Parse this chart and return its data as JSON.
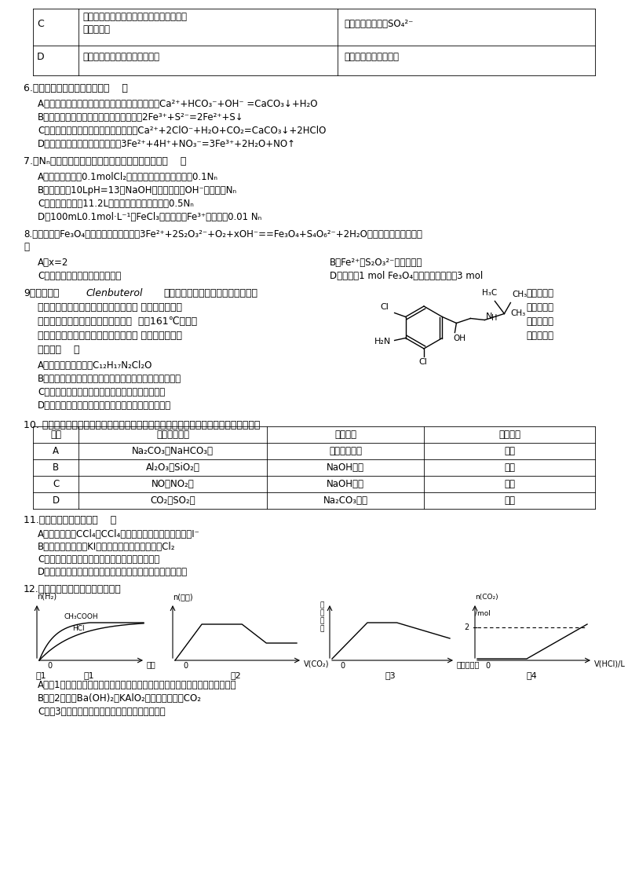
{
  "bg_color": "#ffffff",
  "text_color": "#000000",
  "table_top_rows": [
    {
      "label": "C",
      "col1a": "某溶液中加入硝酸酸化的氯化钡溶液，有白",
      "col1b": "色沉淀生成",
      "col2": "说明该溶液中含有SO₄²⁻"
    },
    {
      "label": "D",
      "col1a": "向盐酸中加入浓硫酸时产生白雾",
      "col1b": "",
      "col2": "说明浓硫酸具有脱水性"
    }
  ],
  "q6_text": "6.下列离子方程式书写正确是（    ）",
  "q6_opts": [
    "A．向碳酸氢钙溶液中加入过量的氢氧化钠溶液：Ca²⁺+HCO₃⁻+OH⁻ =CaCO₃↓+H₂O",
    "B．将少量氯化铁溶液滴入硫化钠溶液中：2Fe³⁺+S²⁻=2Fe²⁺+S↓",
    "C．次氯酸钙溶液中通入过量二氧化碳：Ca²⁺+2ClO⁻+H₂O+CO₂=CaCO₃↓+2HClO",
    "D．氯化亚铁溶液中加入稀硝酸：3Fe²⁺+4H⁺+NO₃⁻=3Fe³⁺+2H₂O+NO↑"
  ],
  "q7_text": "7.设Nₙ为阿伏伽德罗常数的值，下列说法正确的是（    ）",
  "q7_opts": [
    "A．标准状况下，0.1molCl₂溶于水，转移的电子数目为0.1Nₙ",
    "B．常温下，10LpH=13的NaOH溶液中含有的OH⁻离子数为Nₙ",
    "C．标准状况下，11.2L己烷中含有分子的数目为0.5Nₙ",
    "D．100mL0.1mol·L⁻¹的FeCl₃溶液中含有Fe³⁺的个数为0.01 Nₙ"
  ],
  "q8_text": "8.水热法制备Fe₃O₄纳米颗粒的总反应为：3Fe²⁺+2S₂O₃²⁻+O₂+xOH⁻==Fe₃O₄+S₄O₆²⁻+2H₂O，下列说法正确的是（",
  "q8_opts_left": [
    "A．x=2",
    "C．硫元素被氧化，铁元素被还原"
  ],
  "q8_opts_right": [
    "B．Fe²⁺、S₂O₃²⁻都是还原剂",
    "D．每生成1 mol Fe₃O₄，则转移电子数为3 mol"
  ],
  "q9_line1_left": "9、瘦肉精（Clenbuterol）是一种非常廉价的药品，但它有很",
  "q9_line1_right": "危险的副作",
  "q9_line2_left": "   用，轻则导致心律不整，严重一点就会 导致心脏病。瘦",
  "q9_line2_right": "肉精是白色",
  "q9_line3_left": "   或类白色的结晶粉末，无臭、味苦，  熔点161℃，溶于",
  "q9_line3_right": "水、乙醇，",
  "q9_line4_left": "   微溶于丙酮，不溶于乙醚。其结构如图 所示，对于瘦肉",
  "q9_line4_right": "精的说法正",
  "q9_line5_left": "   确的是（    ）",
  "q9_opts": [
    "A．瘦肉精的化学式：C₁₂H₁₇N₂Cl₂O",
    "B．瘦肉精既含有氨基又含有羟基，因此是一种两性化合物",
    "C．能用乙醚等有机溶剂将瘦肉精从水溶液中萃取出",
    "D．一定条件下瘦肉精能发生取代、加成、水解等反应"
  ],
  "q10_text": "10. 为除去下列各混合物中的杂质（括号内为杂质），所加试剂和采用的方法均正确的是",
  "q10_headers": [
    "选项",
    "需除杂的物质",
    "所加试剂",
    "主要操作"
  ],
  "q10_rows": [
    [
      "A",
      "Na₂CO₃（NaHCO₃）",
      "不加任何试剂",
      "加热"
    ],
    [
      "B",
      "Al₂O₃（SiO₂）",
      "NaOH溶液",
      "过滤"
    ],
    [
      "C",
      "NO（NO₂）",
      "NaOH溶液",
      "洗气"
    ],
    [
      "D",
      "CO₂（SO₂）",
      "Na₂CO₃溶液",
      "洗气"
    ]
  ],
  "q11_text": "11.下列叙述中正确的是（    ）",
  "q11_opts": [
    "A．某溶液加入CCl₄，CCl₄层显紫色，证明原溶液中存在I⁻",
    "B．能使润湿的淀粉KI试纸变成蓝色的物质一定是Cl₂",
    "C．液溴易挥发，在存放液溴的试剂瓶中应加水封",
    "D．硝酸亚铁溶液中要加入稀硝酸抑制水解，防止溶液变浑浊"
  ],
  "q12_text": "12.下列图示与对应的叙述相符的是",
  "q12_opts": [
    "A．图1表示向等体积、等物质的量浓度的盐酸和醋酸溶液中，分别加入足量镁粉",
    "B．图2表示向Ba(OH)₂、KAlO₂混合溶液中通入CO₂",
    "C．图3表示表示向盐酸和醋酸混合溶液中滴加氨水"
  ]
}
